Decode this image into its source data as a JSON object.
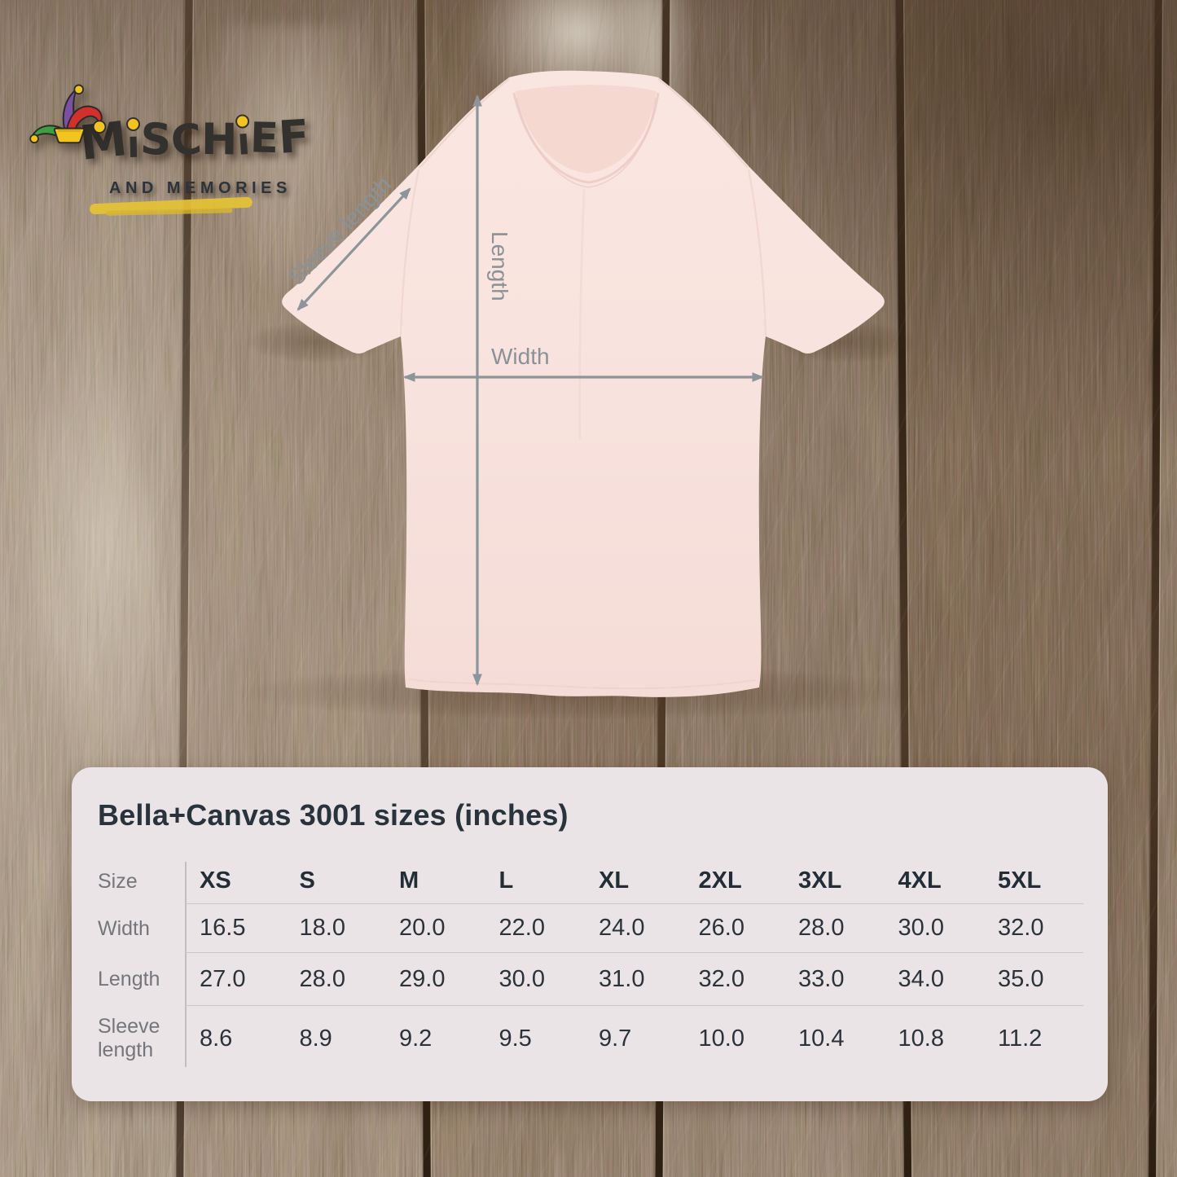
{
  "brand": {
    "letters": [
      "M",
      "ı",
      "S",
      "C",
      "H",
      "ı",
      "E",
      "F"
    ],
    "dot_indices": [
      1,
      5
    ],
    "tagline": "AND MEMORIES",
    "dot_color": "#f2c41f",
    "hat_colors": {
      "purple": "#7b4fa3",
      "red": "#d2302c",
      "green": "#3e9e41",
      "gold": "#f2c41f"
    },
    "underline_color": "#e5c335"
  },
  "diagram": {
    "labels": {
      "sleeve_length": "Sleeve length",
      "length": "Length",
      "width": "Width"
    },
    "shirt_color": "#f8e2dd",
    "neck_color": "#f5d9d0",
    "arrow_color": "#8c9599"
  },
  "size_panel": {
    "title": "Bella+Canvas 3001 sizes (inches)",
    "corner_label": "Size",
    "panel_bg": "#eae4e7",
    "title_color": "#29333c",
    "label_color": "#74767b",
    "value_color": "#2b3239",
    "columns": [
      "XS",
      "S",
      "M",
      "L",
      "XL",
      "2XL",
      "3XL",
      "4XL",
      "5XL"
    ],
    "rows": [
      {
        "label": "Width",
        "values": [
          "16.5",
          "18.0",
          "20.0",
          "22.0",
          "24.0",
          "26.0",
          "28.0",
          "30.0",
          "32.0"
        ]
      },
      {
        "label": "Length",
        "values": [
          "27.0",
          "28.0",
          "29.0",
          "30.0",
          "31.0",
          "32.0",
          "33.0",
          "34.0",
          "35.0"
        ]
      },
      {
        "label": "Sleeve length",
        "values": [
          "8.6",
          "8.9",
          "9.2",
          "9.5",
          "9.7",
          "10.0",
          "10.4",
          "10.8",
          "11.2"
        ]
      }
    ]
  }
}
